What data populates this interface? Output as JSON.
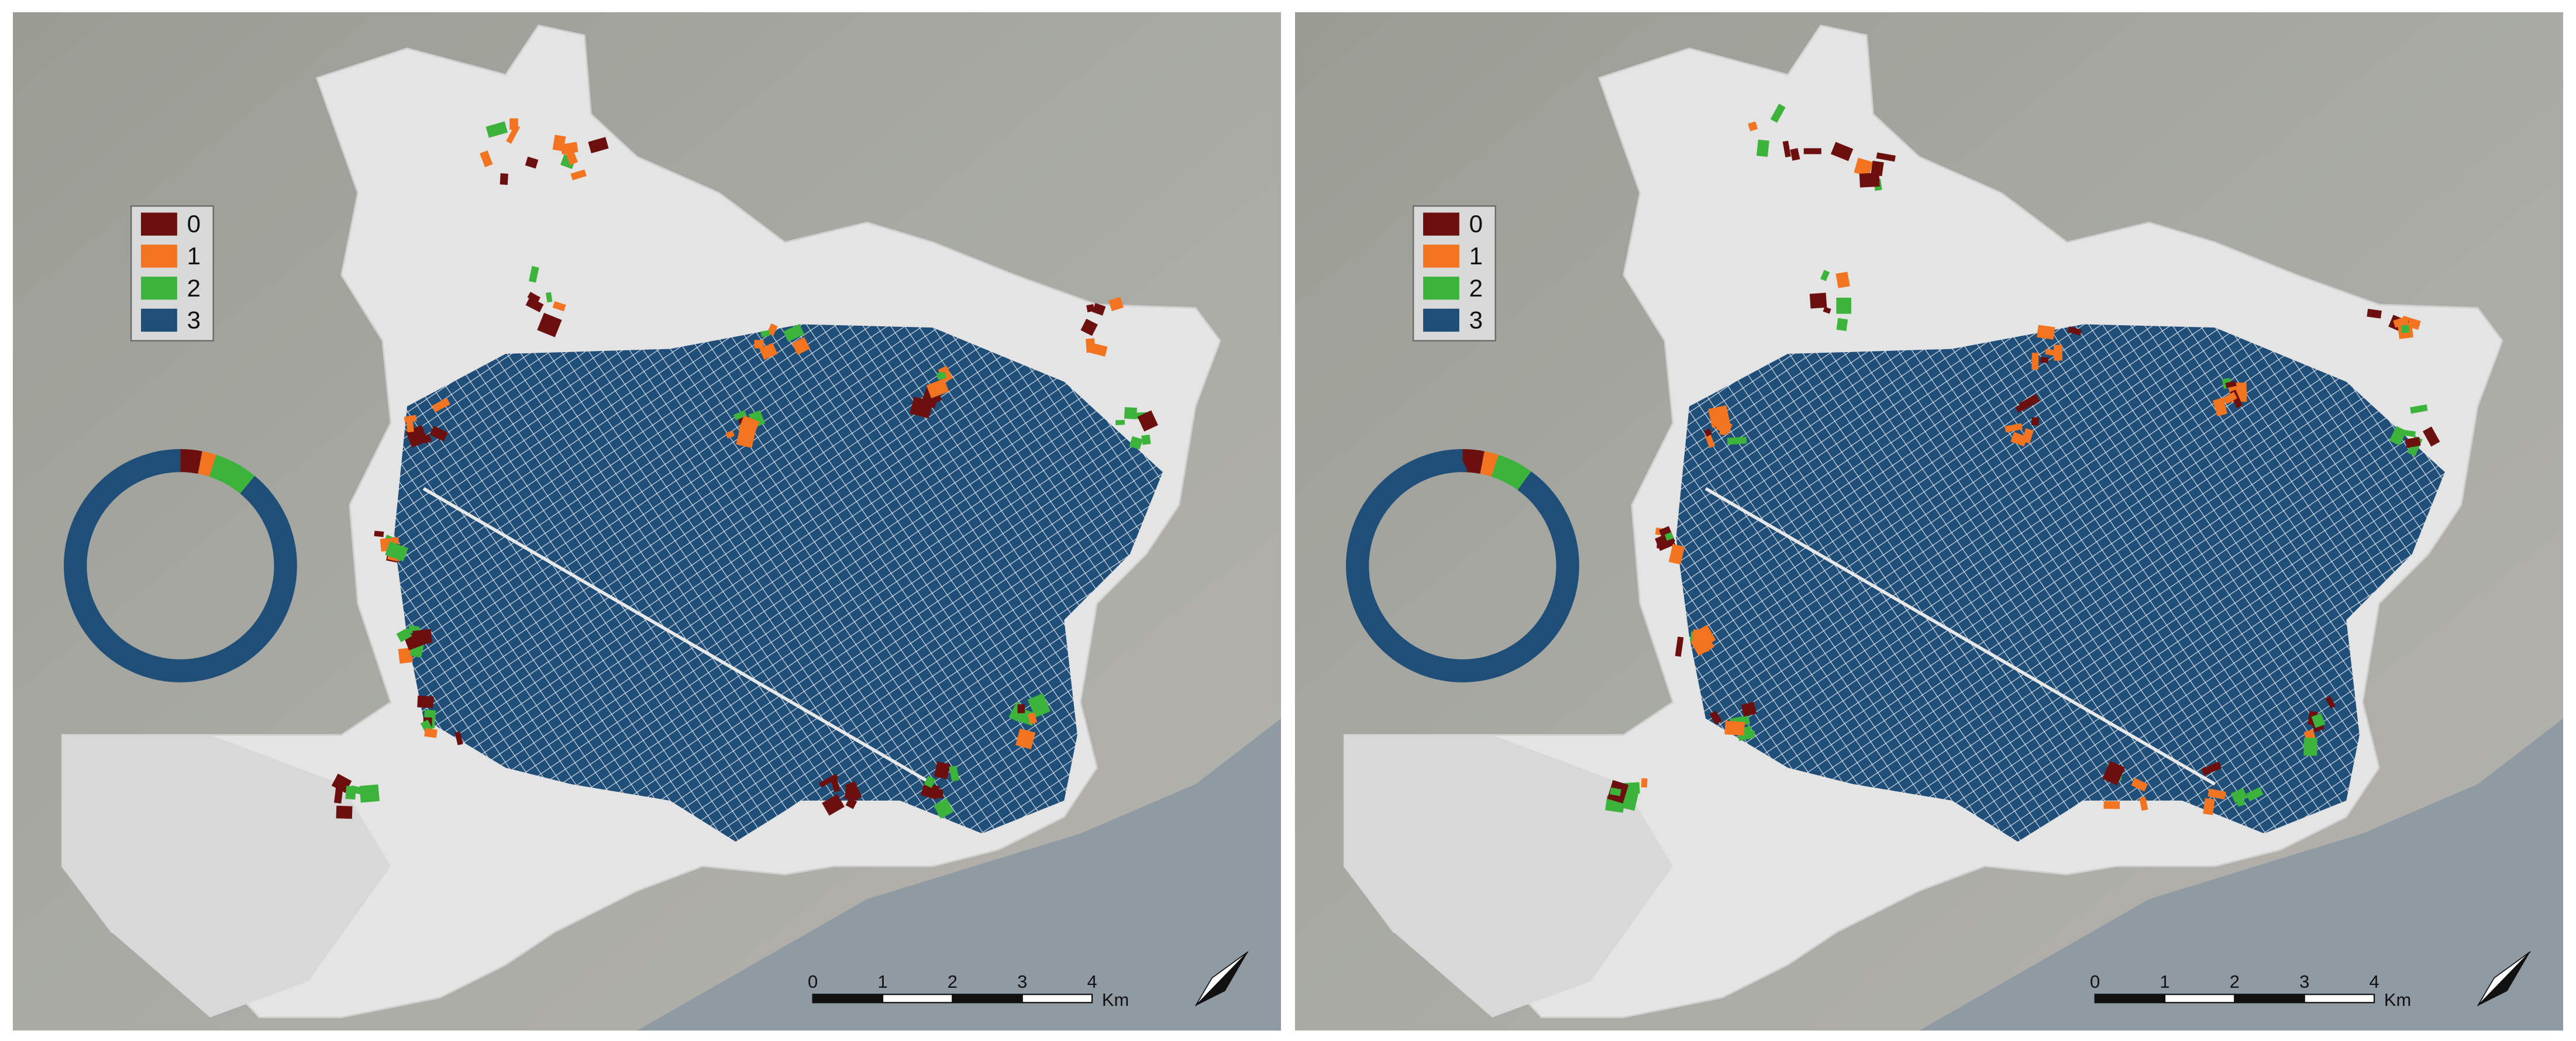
{
  "panels": [
    {
      "legend": {
        "labels": [
          "0",
          "1",
          "2",
          "3"
        ],
        "colors": [
          "#6b0f0f",
          "#f27421",
          "#3cb43c",
          "#1f4e79"
        ]
      },
      "donut": {
        "values": [
          3,
          2,
          6,
          89
        ]
      },
      "scale_bar": {
        "ticks": [
          0,
          1,
          2,
          3,
          4
        ],
        "unit": "Km"
      }
    },
    {
      "legend": {
        "labels": [
          "0",
          "1",
          "2",
          "3"
        ],
        "colors": [
          "#6b0f0f",
          "#f27421",
          "#3cb43c",
          "#1f4e79"
        ]
      },
      "donut": {
        "values": [
          3,
          2,
          5,
          90
        ]
      },
      "scale_bar": {
        "ticks": [
          0,
          1,
          2,
          3,
          4
        ],
        "unit": "Km"
      }
    }
  ]
}
